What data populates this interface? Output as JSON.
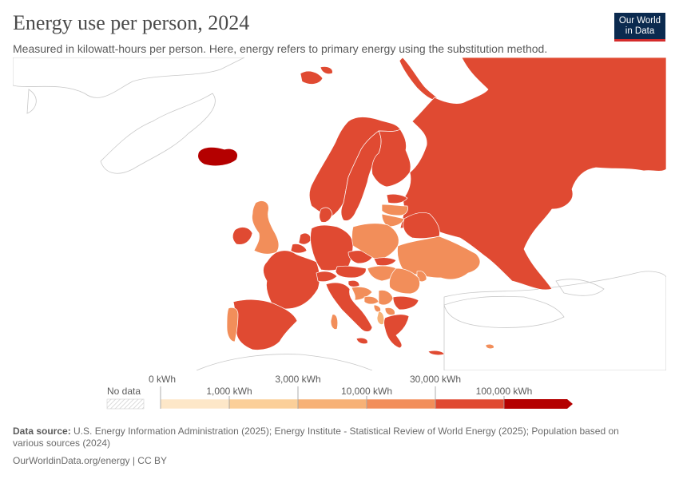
{
  "header": {
    "title": "Energy use per person, 2024",
    "subtitle": "Measured in kilowatt-hours per person. Here, energy refers to primary energy using the substitution method."
  },
  "logo": {
    "line1": "Our World",
    "line2": "in Data"
  },
  "legend": {
    "no_data_label": "No data",
    "tick_labels_upper": [
      "0 kWh",
      "3,000 kWh",
      "30,000 kWh"
    ],
    "tick_labels_lower": [
      "1,000 kWh",
      "10,000 kWh",
      "100,000 kWh"
    ],
    "colors": [
      "#fde7c8",
      "#fbcf99",
      "#f7b176",
      "#f28e5a",
      "#e04a32",
      "#b40000"
    ],
    "no_data_color": "#e8e8e8"
  },
  "footer": {
    "source_label": "Data source:",
    "source_text": "U.S. Energy Information Administration (2025); Energy Institute - Statistical Review of World Energy (2025); Population based on various sources (2024)",
    "url_license": "OurWorldinData.org/energy | CC BY"
  },
  "map_data": {
    "colors": {
      "band_1000_3000": "#fbcf99",
      "band_3000_10000": "#f7b176",
      "band_10000_30000": "#f28e5a",
      "band_30000_100000": "#e04a32",
      "band_over_100000": "#b40000",
      "no_data_fill": "#ffffff",
      "outline": "#b5b5b5"
    },
    "regions": [
      {
        "name": "Iceland",
        "band": "band_over_100000"
      },
      {
        "name": "Norway",
        "band": "band_30000_100000"
      },
      {
        "name": "Sweden",
        "band": "band_30000_100000"
      },
      {
        "name": "Finland",
        "band": "band_30000_100000"
      },
      {
        "name": "Russia",
        "band": "band_30000_100000"
      },
      {
        "name": "Estonia",
        "band": "band_30000_100000"
      },
      {
        "name": "Latvia",
        "band": "band_10000_30000"
      },
      {
        "name": "Lithuania",
        "band": "band_10000_30000"
      },
      {
        "name": "Belarus",
        "band": "band_30000_100000"
      },
      {
        "name": "Denmark",
        "band": "band_30000_100000"
      },
      {
        "name": "Ireland",
        "band": "band_30000_100000"
      },
      {
        "name": "United Kingdom",
        "band": "band_10000_30000"
      },
      {
        "name": "France",
        "band": "band_30000_100000"
      },
      {
        "name": "Belgium",
        "band": "band_30000_100000"
      },
      {
        "name": "Netherlands",
        "band": "band_30000_100000"
      },
      {
        "name": "Germany",
        "band": "band_30000_100000"
      },
      {
        "name": "Switzerland",
        "band": "band_30000_100000"
      },
      {
        "name": "Austria",
        "band": "band_30000_100000"
      },
      {
        "name": "Czechia",
        "band": "band_30000_100000"
      },
      {
        "name": "Poland",
        "band": "band_10000_30000"
      },
      {
        "name": "Slovakia",
        "band": "band_30000_100000"
      },
      {
        "name": "Hungary",
        "band": "band_10000_30000"
      },
      {
        "name": "Slovenia",
        "band": "band_30000_100000"
      },
      {
        "name": "Croatia",
        "band": "band_10000_30000"
      },
      {
        "name": "Bosnia and Herzegovina",
        "band": "band_10000_30000"
      },
      {
        "name": "Serbia",
        "band": "band_10000_30000"
      },
      {
        "name": "Montenegro",
        "band": "band_10000_30000"
      },
      {
        "name": "Albania",
        "band": "band_3000_10000"
      },
      {
        "name": "North Macedonia",
        "band": "band_10000_30000"
      },
      {
        "name": "Greece",
        "band": "band_30000_100000"
      },
      {
        "name": "Bulgaria",
        "band": "band_30000_100000"
      },
      {
        "name": "Romania",
        "band": "band_10000_30000"
      },
      {
        "name": "Moldova",
        "band": "band_10000_30000"
      },
      {
        "name": "Ukraine",
        "band": "band_10000_30000"
      },
      {
        "name": "Italy",
        "band": "band_30000_100000"
      },
      {
        "name": "Sardinia",
        "band": "band_10000_30000"
      },
      {
        "name": "Spain",
        "band": "band_30000_100000"
      },
      {
        "name": "Portugal",
        "band": "band_10000_30000"
      },
      {
        "name": "Crete",
        "band": "band_30000_100000"
      },
      {
        "name": "Cyprus",
        "band": "band_10000_30000"
      },
      {
        "name": "Svalbard",
        "band": "band_30000_100000"
      },
      {
        "name": "Novaya Zemlya",
        "band": "band_30000_100000"
      }
    ]
  }
}
